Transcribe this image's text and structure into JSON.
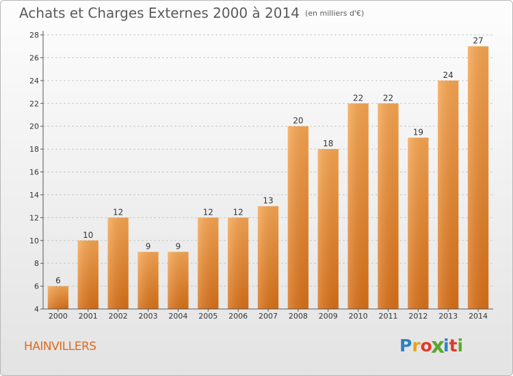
{
  "header": {
    "title": "Achats et Charges Externes 2000 à 2014",
    "subtitle": "(en milliers d'€)"
  },
  "footer": {
    "place": "HAINVILLERS",
    "brand": "Proxiti",
    "brand_colors": [
      "#2f7fc4",
      "#e8a21a",
      "#e03a2a",
      "#5aa830",
      "#2f7fc4",
      "#e03a2a",
      "#5aa830"
    ]
  },
  "colors": {
    "bar_top": "#f7a550",
    "bar_bottom": "#d86f16",
    "grid": "#c8c8c8",
    "axis": "#555555",
    "text": "#333333"
  },
  "chart_data": {
    "type": "bar",
    "categories": [
      "2000",
      "2001",
      "2002",
      "2003",
      "2004",
      "2005",
      "2006",
      "2007",
      "2008",
      "2009",
      "2010",
      "2011",
      "2012",
      "2013",
      "2014"
    ],
    "values": [
      6,
      10,
      12,
      9,
      9,
      12,
      12,
      13,
      20,
      18,
      22,
      22,
      19,
      24,
      27
    ],
    "ylim": [
      4,
      28
    ],
    "yticks": [
      4,
      6,
      8,
      10,
      12,
      14,
      16,
      18,
      20,
      22,
      24,
      26,
      28
    ],
    "grid": true,
    "data_labels": true
  }
}
